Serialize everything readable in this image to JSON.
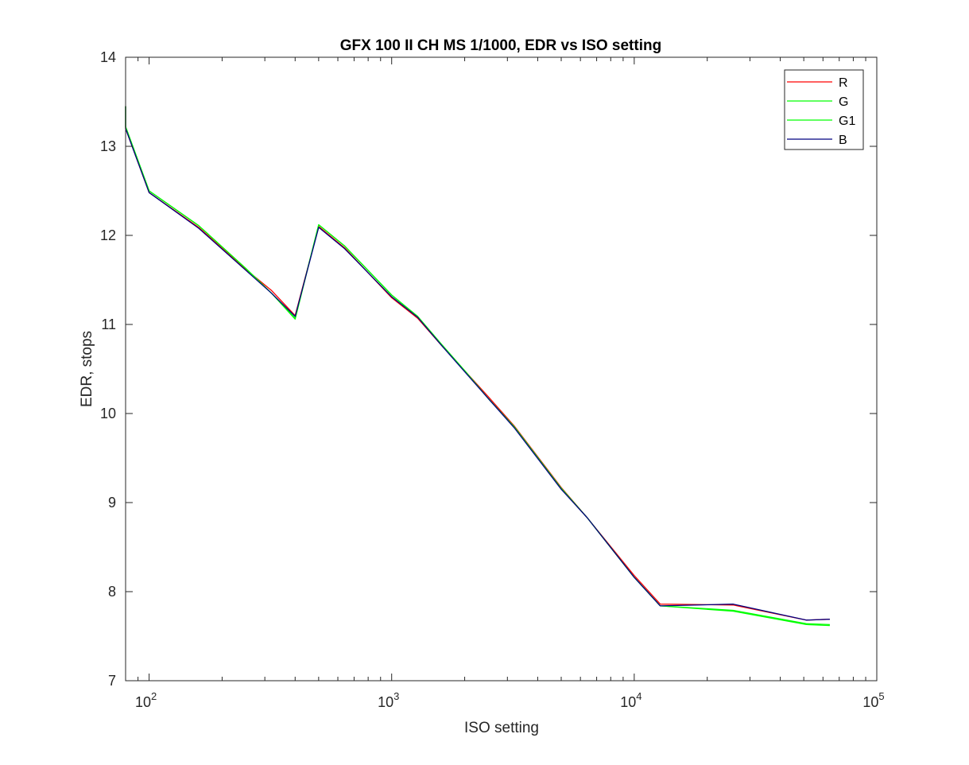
{
  "chart_data": {
    "type": "line",
    "title": "GFX 100 II CH MS 1/1000, EDR vs ISO setting",
    "xlabel": "ISO setting",
    "ylabel": "EDR, stops",
    "xscale": "log",
    "xlim": [
      80,
      100000
    ],
    "ylim": [
      7,
      14
    ],
    "xticks": [
      100,
      1000,
      10000,
      100000
    ],
    "xtick_labels": [
      {
        "base": "10",
        "exp": "2"
      },
      {
        "base": "10",
        "exp": "3"
      },
      {
        "base": "10",
        "exp": "4"
      },
      {
        "base": "10",
        "exp": "5"
      }
    ],
    "yticks": [
      7,
      8,
      9,
      10,
      11,
      12,
      13,
      14
    ],
    "grid": false,
    "legend_position": "top-right",
    "x": [
      80,
      80,
      100,
      160,
      250,
      320,
      400,
      500,
      640,
      1000,
      1280,
      1600,
      2000,
      2500,
      3200,
      5000,
      6400,
      10000,
      12800,
      25600,
      51200,
      64000
    ],
    "series": [
      {
        "name": "R",
        "color": "#ff0000",
        "values": [
          13.45,
          13.2,
          12.48,
          12.09,
          11.62,
          11.38,
          11.1,
          12.1,
          11.86,
          11.3,
          11.07,
          10.77,
          10.48,
          10.19,
          9.86,
          9.17,
          8.83,
          8.18,
          7.86,
          7.85,
          7.68,
          7.69
        ]
      },
      {
        "name": "G",
        "color": "#00ff00",
        "values": [
          13.45,
          13.22,
          12.5,
          12.11,
          11.63,
          11.35,
          11.06,
          12.12,
          11.88,
          11.33,
          11.09,
          10.78,
          10.48,
          10.17,
          9.85,
          9.16,
          8.83,
          8.16,
          7.84,
          7.79,
          7.64,
          7.63
        ]
      },
      {
        "name": "G1",
        "color": "#00ff00",
        "values": [
          13.45,
          13.22,
          12.5,
          12.11,
          11.63,
          11.35,
          11.07,
          12.12,
          11.88,
          11.33,
          11.09,
          10.78,
          10.48,
          10.17,
          9.85,
          9.16,
          8.83,
          8.16,
          7.84,
          7.78,
          7.63,
          7.62
        ]
      },
      {
        "name": "B",
        "color": "#000080",
        "values": [
          13.45,
          13.2,
          12.48,
          12.08,
          11.61,
          11.35,
          11.09,
          12.09,
          11.85,
          11.31,
          11.08,
          10.77,
          10.47,
          10.17,
          9.84,
          9.15,
          8.83,
          8.16,
          7.84,
          7.86,
          7.68,
          7.69
        ]
      }
    ]
  }
}
